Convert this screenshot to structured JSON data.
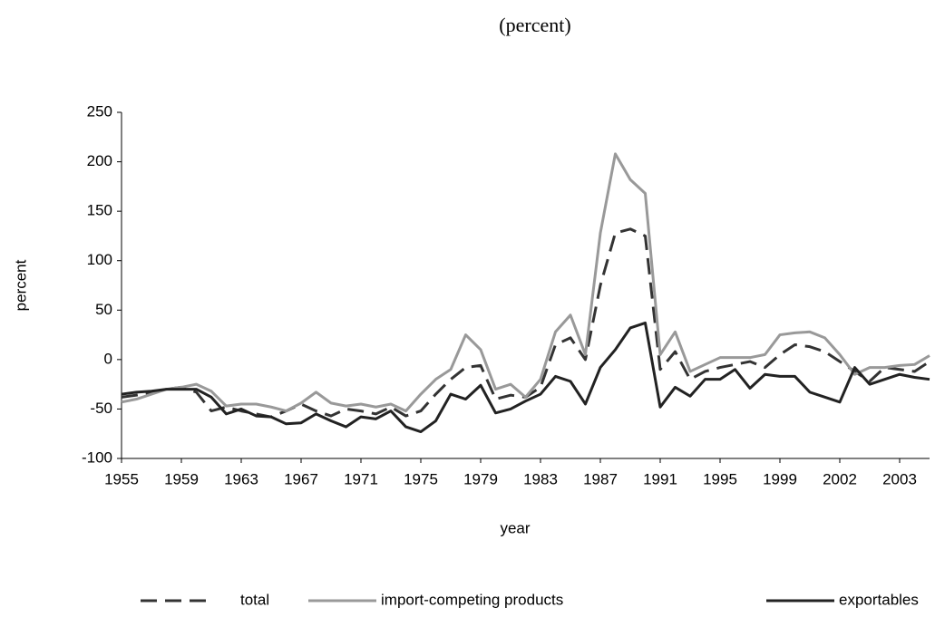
{
  "chart_data": {
    "type": "line",
    "title": "(percent)",
    "x_label": "year",
    "y_label": "percent",
    "categories": [
      "1955",
      null,
      null,
      null,
      "1959",
      null,
      null,
      null,
      "1963",
      null,
      null,
      null,
      "1967",
      null,
      null,
      null,
      "1971",
      null,
      null,
      null,
      "1975",
      null,
      null,
      null,
      "1979",
      null,
      null,
      null,
      "1983",
      null,
      null,
      null,
      "1987",
      null,
      null,
      null,
      "1991",
      null,
      null,
      null,
      "1995",
      null,
      null,
      null,
      "1999",
      null,
      null,
      null,
      "2002",
      null,
      null,
      null,
      "2003",
      null,
      null
    ],
    "series": [
      {
        "name": "total",
        "color": "#333333",
        "dashed": true,
        "values": [
          -38,
          -36,
          -33,
          -30,
          -28,
          -33,
          -52,
          -48,
          -52,
          -55,
          -58,
          -52,
          -45,
          -52,
          -57,
          -50,
          -52,
          -55,
          -48,
          -57,
          -52,
          -35,
          -20,
          -8,
          -6,
          -40,
          -36,
          -38,
          -28,
          15,
          22,
          0,
          75,
          128,
          132,
          125,
          -10,
          8,
          -20,
          -12,
          -8,
          -5,
          -2,
          -8,
          5,
          15,
          13,
          8,
          -2,
          -12,
          -22,
          -8,
          -10,
          -12,
          -2
        ]
      },
      {
        "name": "import-competing products",
        "color": "#999999",
        "dashed": false,
        "values": [
          -43,
          -40,
          -35,
          -30,
          -28,
          -25,
          -32,
          -47,
          -45,
          -45,
          -48,
          -52,
          -44,
          -33,
          -44,
          -47,
          -45,
          -48,
          -45,
          -52,
          -35,
          -20,
          -10,
          25,
          10,
          -30,
          -25,
          -38,
          -20,
          28,
          45,
          5,
          128,
          208,
          182,
          168,
          5,
          28,
          -12,
          -5,
          2,
          2,
          2,
          5,
          25,
          27,
          28,
          22,
          5,
          -15,
          -8,
          -8,
          -6,
          -5,
          4
        ]
      },
      {
        "name": "exportables",
        "color": "#222222",
        "dashed": false,
        "values": [
          -35,
          -33,
          -32,
          -30,
          -30,
          -30,
          -38,
          -55,
          -50,
          -57,
          -58,
          -65,
          -64,
          -55,
          -62,
          -68,
          -58,
          -60,
          -52,
          -68,
          -73,
          -62,
          -35,
          -40,
          -26,
          -54,
          -50,
          -42,
          -35,
          -17,
          -22,
          -45,
          -8,
          10,
          32,
          37,
          -48,
          -28,
          -37,
          -20,
          -20,
          -10,
          -29,
          -15,
          -17,
          -17,
          -33,
          -38,
          -43,
          -8,
          -25,
          -20,
          -15,
          -18,
          -20
        ]
      }
    ],
    "ylim": [
      -100,
      250
    ],
    "yticks": [
      -100,
      -50,
      0,
      50,
      100,
      150,
      200,
      250
    ],
    "grid": false,
    "legend": "bottom"
  }
}
